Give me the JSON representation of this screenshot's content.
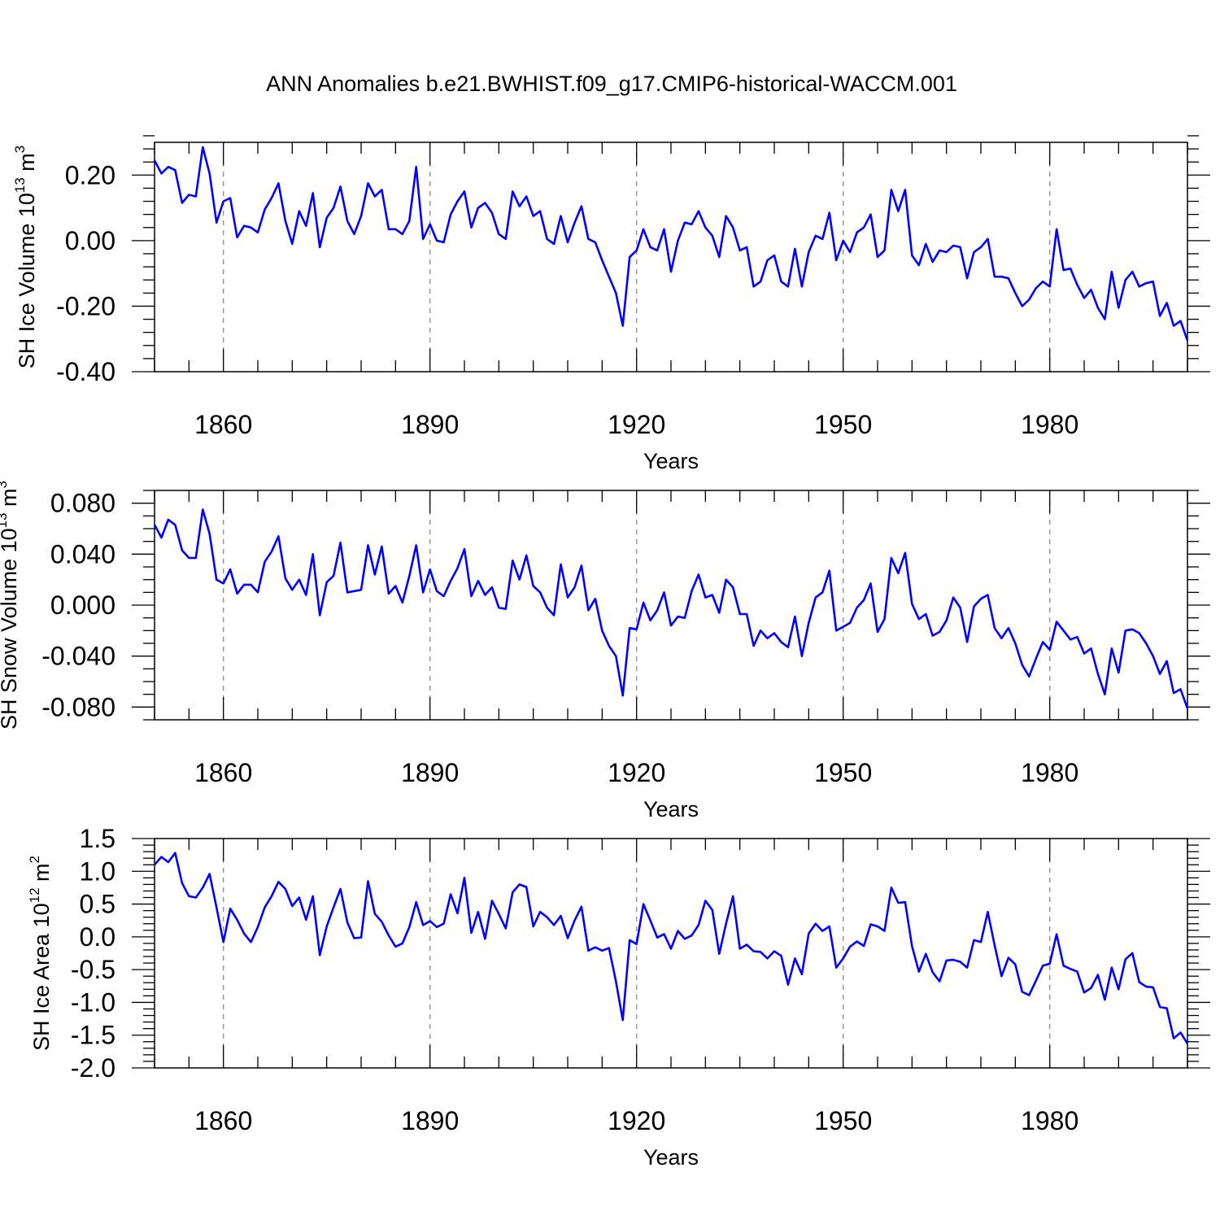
{
  "title": "ANN Anomalies b.e21.BWHIST.f09_g17.CMIP6-historical-WACCM.001",
  "colors": {
    "line": "#0000ff",
    "grid": "#8c8c8c",
    "axis": "#000000"
  },
  "chart_data": [
    {
      "type": "line",
      "name": "panel-ice-volume",
      "ylabel_prefix": "SH Ice Volume 10",
      "ylabel_exp1": "13",
      "ylabel_unit": " m",
      "ylabel_exp2": "3",
      "xlabel": "Years",
      "xlim": [
        1850,
        2000
      ],
      "ylim": [
        -0.4,
        0.3
      ],
      "yticks": [
        -0.4,
        -0.2,
        0.0,
        0.2
      ],
      "ytick_labels": [
        "-0.40",
        "-0.20",
        "0.00",
        "0.20"
      ],
      "yminor_step": 0.04,
      "xticks": [
        1860,
        1890,
        1920,
        1950,
        1980
      ],
      "xtick_labels": [
        "1860",
        "1890",
        "1920",
        "1950",
        "1980"
      ],
      "grid_x": true,
      "x_start": 1850,
      "values": [
        0.245,
        0.205,
        0.225,
        0.215,
        0.115,
        0.14,
        0.135,
        0.285,
        0.205,
        0.055,
        0.12,
        0.13,
        0.01,
        0.045,
        0.04,
        0.025,
        0.095,
        0.13,
        0.175,
        0.06,
        -0.01,
        0.09,
        0.045,
        0.145,
        -0.02,
        0.07,
        0.1,
        0.165,
        0.06,
        0.02,
        0.075,
        0.175,
        0.135,
        0.155,
        0.035,
        0.035,
        0.02,
        0.06,
        0.225,
        0.005,
        0.05,
        0.0,
        -0.005,
        0.08,
        0.12,
        0.15,
        0.04,
        0.1,
        0.115,
        0.085,
        0.02,
        0.005,
        0.15,
        0.105,
        0.135,
        0.075,
        0.09,
        0.005,
        -0.01,
        0.075,
        -0.005,
        0.055,
        0.105,
        0.005,
        -0.005,
        -0.06,
        -0.11,
        -0.16,
        -0.26,
        -0.05,
        -0.03,
        0.035,
        -0.02,
        -0.03,
        0.035,
        -0.095,
        0.0,
        0.055,
        0.05,
        0.09,
        0.04,
        0.015,
        -0.05,
        0.075,
        0.04,
        -0.03,
        -0.02,
        -0.14,
        -0.125,
        -0.06,
        -0.045,
        -0.125,
        -0.14,
        -0.025,
        -0.14,
        -0.035,
        0.015,
        0.005,
        0.085,
        -0.06,
        0.0,
        -0.035,
        0.025,
        0.04,
        0.08,
        -0.05,
        -0.03,
        0.155,
        0.09,
        0.155,
        -0.045,
        -0.075,
        -0.01,
        -0.065,
        -0.03,
        -0.035,
        -0.015,
        -0.02,
        -0.115,
        -0.035,
        -0.02,
        0.005,
        -0.11,
        -0.11,
        -0.115,
        -0.16,
        -0.2,
        -0.18,
        -0.145,
        -0.125,
        -0.14,
        0.035,
        -0.09,
        -0.085,
        -0.135,
        -0.175,
        -0.15,
        -0.205,
        -0.24,
        -0.095,
        -0.205,
        -0.12,
        -0.095,
        -0.14,
        -0.13,
        -0.125,
        -0.23,
        -0.19,
        -0.26,
        -0.245,
        -0.305
      ]
    },
    {
      "type": "line",
      "name": "panel-snow-volume",
      "ylabel_prefix": "SH Snow Volume 10",
      "ylabel_exp1": "13",
      "ylabel_unit": " m",
      "ylabel_exp2": "3",
      "xlabel": "Years",
      "xlim": [
        1850,
        2000
      ],
      "ylim": [
        -0.09,
        0.09
      ],
      "yticks": [
        -0.08,
        -0.04,
        0.0,
        0.04,
        0.08
      ],
      "ytick_labels": [
        "-0.080",
        "-0.040",
        "0.000",
        "0.040",
        "0.080"
      ],
      "yminor_step": 0.01,
      "xticks": [
        1860,
        1890,
        1920,
        1950,
        1980
      ],
      "xtick_labels": [
        "1860",
        "1890",
        "1920",
        "1950",
        "1980"
      ],
      "grid_x": true,
      "x_start": 1850,
      "values": [
        0.063,
        0.053,
        0.067,
        0.063,
        0.043,
        0.037,
        0.037,
        0.075,
        0.056,
        0.02,
        0.017,
        0.028,
        0.009,
        0.016,
        0.016,
        0.01,
        0.034,
        0.042,
        0.054,
        0.021,
        0.012,
        0.02,
        0.008,
        0.04,
        -0.008,
        0.018,
        0.023,
        0.049,
        0.01,
        0.011,
        0.012,
        0.047,
        0.024,
        0.046,
        0.009,
        0.015,
        0.002,
        0.023,
        0.047,
        0.01,
        0.028,
        0.011,
        0.007,
        0.019,
        0.029,
        0.044,
        0.007,
        0.019,
        0.008,
        0.014,
        -0.002,
        -0.003,
        0.035,
        0.02,
        0.039,
        0.015,
        0.01,
        -0.002,
        -0.008,
        0.032,
        0.006,
        0.014,
        0.031,
        -0.004,
        0.005,
        -0.02,
        -0.032,
        -0.04,
        -0.071,
        -0.018,
        -0.019,
        0.002,
        -0.012,
        -0.004,
        0.01,
        -0.016,
        -0.009,
        -0.01,
        0.011,
        0.024,
        0.006,
        0.008,
        -0.006,
        0.02,
        0.014,
        -0.007,
        -0.007,
        -0.032,
        -0.02,
        -0.026,
        -0.022,
        -0.029,
        -0.033,
        -0.009,
        -0.04,
        -0.014,
        0.006,
        0.01,
        0.027,
        -0.02,
        -0.017,
        -0.014,
        -0.002,
        0.004,
        0.017,
        -0.021,
        -0.011,
        0.037,
        0.025,
        0.041,
        0.001,
        -0.011,
        -0.007,
        -0.024,
        -0.021,
        -0.012,
        0.006,
        -0.002,
        -0.029,
        -0.001,
        0.005,
        0.008,
        -0.018,
        -0.026,
        -0.018,
        -0.03,
        -0.047,
        -0.056,
        -0.042,
        -0.029,
        -0.035,
        -0.013,
        -0.02,
        -0.027,
        -0.025,
        -0.038,
        -0.034,
        -0.054,
        -0.07,
        -0.034,
        -0.053,
        -0.02,
        -0.019,
        -0.022,
        -0.03,
        -0.04,
        -0.054,
        -0.044,
        -0.069,
        -0.066,
        -0.081
      ]
    },
    {
      "type": "line",
      "name": "panel-ice-area",
      "ylabel_prefix": "SH Ice Area 10",
      "ylabel_exp1": "12",
      "ylabel_unit": " m",
      "ylabel_exp2": "2",
      "xlabel": "Years",
      "xlim": [
        1850,
        2000
      ],
      "ylim": [
        -2.0,
        1.5
      ],
      "yticks": [
        -2.0,
        -1.5,
        -1.0,
        -0.5,
        0.0,
        0.5,
        1.0,
        1.5
      ],
      "ytick_labels": [
        "-2.0",
        "-1.5",
        "-1.0",
        "-0.5",
        "0.0",
        "0.5",
        "1.0",
        "1.5"
      ],
      "yminor_step": 0.1,
      "xticks": [
        1860,
        1890,
        1920,
        1950,
        1980
      ],
      "xtick_labels": [
        "1860",
        "1890",
        "1920",
        "1950",
        "1980"
      ],
      "grid_x": true,
      "x_start": 1850,
      "values": [
        1.1,
        1.22,
        1.14,
        1.28,
        0.82,
        0.62,
        0.6,
        0.75,
        0.96,
        0.45,
        -0.08,
        0.43,
        0.26,
        0.05,
        -0.08,
        0.15,
        0.45,
        0.62,
        0.84,
        0.73,
        0.47,
        0.6,
        0.26,
        0.62,
        -0.28,
        0.16,
        0.45,
        0.73,
        0.22,
        -0.02,
        -0.01,
        0.85,
        0.35,
        0.23,
        0.02,
        -0.15,
        -0.1,
        0.15,
        0.53,
        0.18,
        0.24,
        0.15,
        0.2,
        0.65,
        0.36,
        0.9,
        0.06,
        0.38,
        -0.03,
        0.55,
        0.35,
        0.13,
        0.68,
        0.8,
        0.76,
        0.16,
        0.38,
        0.3,
        0.18,
        0.32,
        -0.02,
        0.25,
        0.46,
        -0.21,
        -0.16,
        -0.21,
        -0.17,
        -0.68,
        -1.27,
        -0.05,
        -0.11,
        0.5,
        0.25,
        -0.01,
        0.04,
        -0.18,
        0.09,
        -0.03,
        0.02,
        0.18,
        0.55,
        0.41,
        -0.26,
        0.2,
        0.62,
        -0.18,
        -0.12,
        -0.22,
        -0.23,
        -0.33,
        -0.22,
        -0.29,
        -0.73,
        -0.33,
        -0.57,
        0.05,
        0.2,
        0.09,
        0.16,
        -0.47,
        -0.33,
        -0.15,
        -0.07,
        -0.14,
        0.19,
        0.16,
        0.09,
        0.75,
        0.52,
        0.53,
        -0.14,
        -0.53,
        -0.26,
        -0.54,
        -0.68,
        -0.36,
        -0.35,
        -0.38,
        -0.47,
        -0.05,
        -0.08,
        0.38,
        -0.13,
        -0.6,
        -0.32,
        -0.42,
        -0.84,
        -0.89,
        -0.67,
        -0.44,
        -0.41,
        0.04,
        -0.44,
        -0.49,
        -0.53,
        -0.85,
        -0.78,
        -0.58,
        -0.96,
        -0.47,
        -0.8,
        -0.34,
        -0.25,
        -0.69,
        -0.76,
        -0.77,
        -1.07,
        -1.09,
        -1.55,
        -1.46,
        -1.63
      ]
    }
  ]
}
